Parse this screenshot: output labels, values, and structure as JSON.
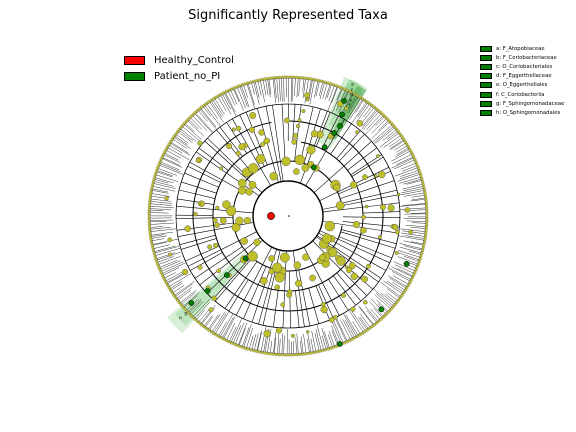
{
  "title": "Significantly Represented Taxa",
  "colors": {
    "healthy": "#ff0000",
    "patient": "#008000",
    "node_default": "#bfbf2a",
    "shade": "#7fcc7f"
  },
  "legend_groups": [
    {
      "label": "Healthy_Control",
      "color": "#ff0000"
    },
    {
      "label": "Patient_no_PI",
      "color": "#008000"
    }
  ],
  "taxa_legend": [
    {
      "key": "a",
      "label": "a: F_Atopobiaceae"
    },
    {
      "key": "b",
      "label": "b: F_Coriobacteriaceae"
    },
    {
      "key": "c",
      "label": "c: O_Coriobacteriales"
    },
    {
      "key": "d",
      "label": "d: F_Eggerthellaceae"
    },
    {
      "key": "e",
      "label": "e: O_Eggerthellales"
    },
    {
      "key": "f",
      "label": "f: C_Coriobacteriia"
    },
    {
      "key": "g",
      "label": "g: F_Sphingomonadaceae"
    },
    {
      "key": "h",
      "label": "h: O_Sphingomonadales"
    }
  ],
  "highlight_sector_letters": [
    "f",
    "e",
    "d",
    "c",
    "a"
  ],
  "highlight_sector_letters_2": [
    "h",
    "g"
  ]
}
